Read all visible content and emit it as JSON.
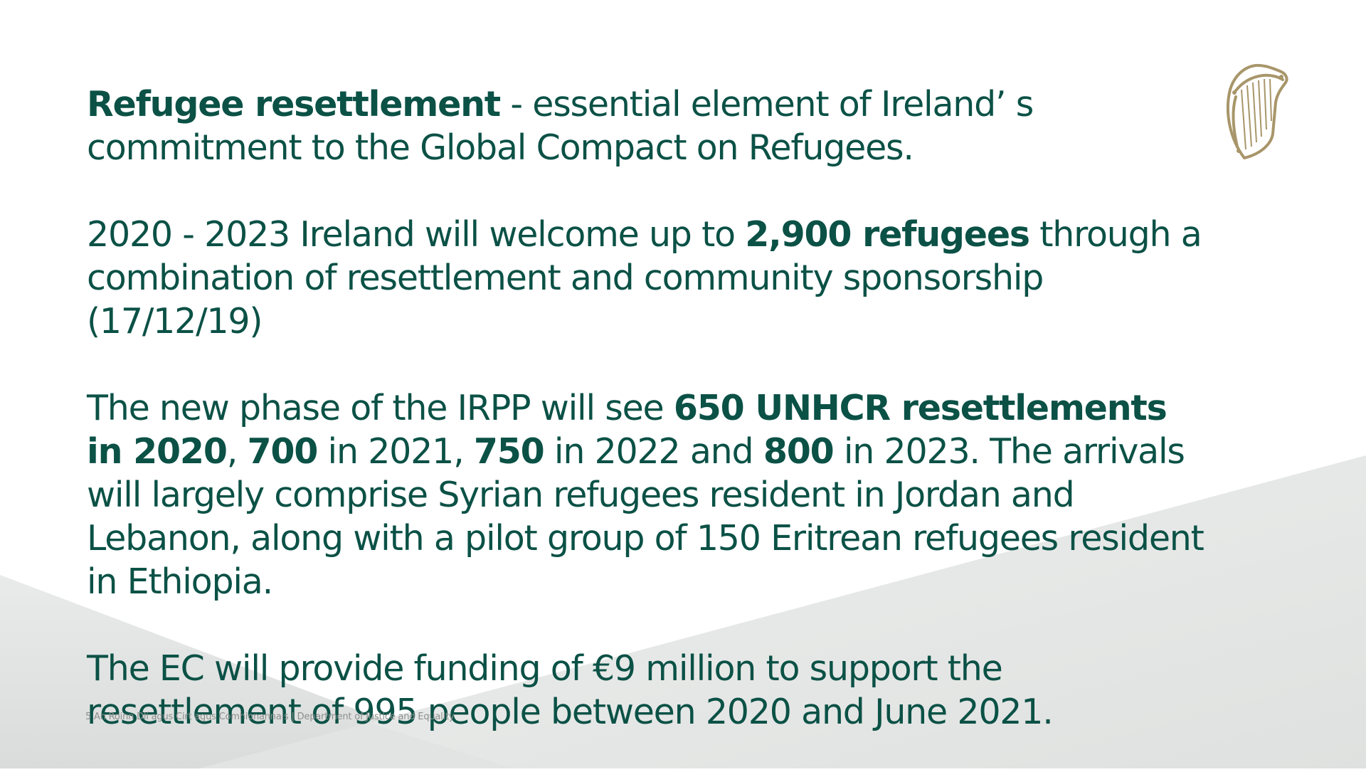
{
  "paragraphs": {
    "p1": {
      "bold_lead": "Refugee resettlement",
      "rest": " - essential element of Ireland’ s commitment to the Global Compact on Refugees."
    },
    "p2": {
      "t1": "2020 - 2023 Ireland will welcome up to ",
      "b1": "2,900 refugees",
      "t2": " through a combination of resettlement and community sponsorship (17/12/19)"
    },
    "p3": {
      "t1": "The new phase of the IRPP will see ",
      "b1": "650 UNHCR resettlements in 2020",
      "t2": ", ",
      "b2": "700",
      "t3": " in 2021, ",
      "b3": "750",
      "t4": " in 2022 and ",
      "b4": "800",
      "t5": " in 2023. The arrivals will largely comprise Syrian refugees resident in Jordan and Lebanon, along with a pilot group of 150 Eritrean refugees resident in Ethiopia."
    },
    "p4": {
      "text": "The EC will provide funding of €9 million to support the resettlement of 995 people between 2020 and June 2021."
    }
  },
  "footer": {
    "text": "5 An Roinn Dlí agus Cirt agus Comhionannais | Department of Justice and Equality"
  },
  "emblem": {
    "icon": "irish-harp-icon",
    "color": "#a8966a"
  },
  "colors": {
    "text": "#0b5146",
    "background_shape_light": "#eef0ef",
    "background_shape_mid": "#e3e5e4"
  }
}
